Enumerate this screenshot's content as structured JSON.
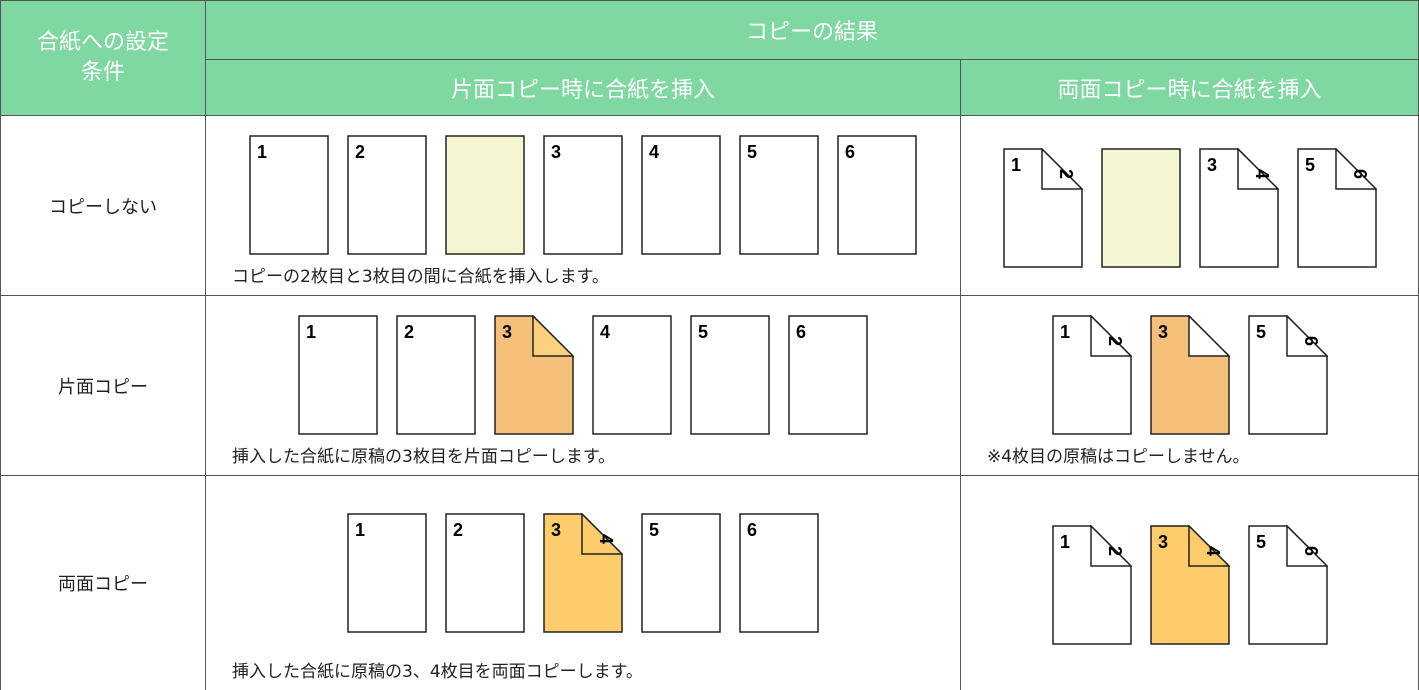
{
  "header": {
    "condition": "合紙への設定条件",
    "result": "コピーの結果",
    "single": "片面コピー時に合紙を挿入",
    "duplex": "両面コピー時に合紙を挿入"
  },
  "rows": [
    {
      "condition": "コピーしない",
      "single": {
        "sheets": [
          {
            "front": "1"
          },
          {
            "front": "2"
          },
          {
            "fill": "#f5f7d2"
          },
          {
            "front": "3"
          },
          {
            "front": "4"
          },
          {
            "front": "5"
          },
          {
            "front": "6"
          }
        ],
        "note": "コピーの2枚目と3枚目の間に合紙を挿入します。"
      },
      "duplex": {
        "sheets": [
          {
            "front": "1",
            "back": "2"
          },
          {
            "fill": "#f5f7d2"
          },
          {
            "front": "3",
            "back": "4"
          },
          {
            "front": "5",
            "back": "6"
          }
        ]
      }
    },
    {
      "condition": "片面コピー",
      "single": {
        "sheets": [
          {
            "front": "1"
          },
          {
            "front": "2"
          },
          {
            "front": "3",
            "fill": "#f5c07a",
            "fold": "#fcd27e"
          },
          {
            "front": "4"
          },
          {
            "front": "5"
          },
          {
            "front": "6"
          }
        ],
        "note": "挿入した合紙に原稿の3枚目を片面コピーします。"
      },
      "duplex": {
        "sheets": [
          {
            "front": "1",
            "back": "2"
          },
          {
            "front": "3",
            "fill": "#f5c07a",
            "fold": "#ffffff"
          },
          {
            "front": "5",
            "back": "6"
          }
        ],
        "note": "※4枚目の原稿はコピーしません。"
      }
    },
    {
      "condition": "両面コピー",
      "single": {
        "sheets": [
          {
            "front": "1"
          },
          {
            "front": "2"
          },
          {
            "front": "3",
            "back": "4",
            "fill": "#fccd6a",
            "fold": "#fccd6a"
          },
          {
            "front": "5"
          },
          {
            "front": "6"
          }
        ],
        "note": "挿入した合紙に原稿の3、4枚目を両面コピーします。"
      },
      "duplex": {
        "sheets": [
          {
            "front": "1",
            "back": "2"
          },
          {
            "front": "3",
            "back": "4",
            "fill": "#fccd6a",
            "fold": "#fccd6a"
          },
          {
            "front": "5",
            "back": "6"
          }
        ]
      }
    }
  ]
}
